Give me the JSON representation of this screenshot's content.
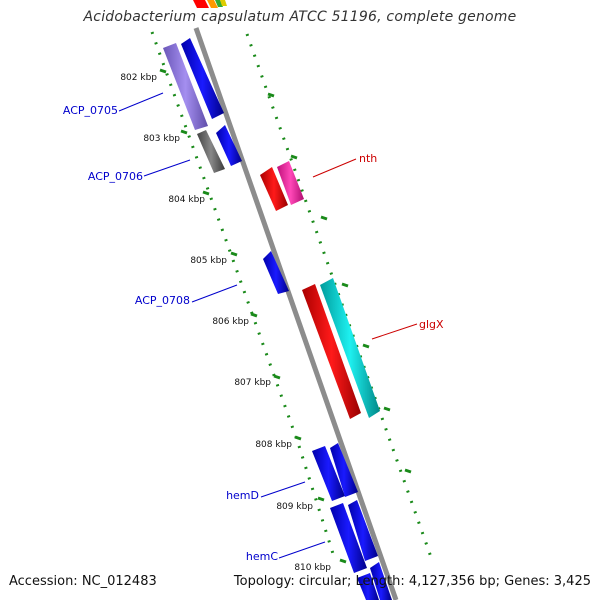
{
  "title": "Acidobacterium capsulatum ATCC 51196, complete genome",
  "accession": "Accession: NC_012483",
  "summary": "Topology: circular; Length: 4,127,356 bp; Genes: 3,425",
  "colors": {
    "backbone": "#8c8c8c",
    "tick": "#1a8a1a",
    "forward_cds": "#0000ee",
    "reverse_cds": "#0000ee",
    "named_blue": "#0000cc",
    "named_red": "#cc0000",
    "red_gene": "#ff0000",
    "magenta_gene": "#ff2aa0",
    "cyan_gene": "#00d0d0",
    "purple_gene": "#7a5fd0",
    "grey_gene": "#666666"
  },
  "kbp_labels": [
    "802 kbp",
    "803 kbp",
    "804 kbp",
    "805 kbp",
    "806 kbp",
    "807 kbp",
    "808 kbp",
    "809 kbp",
    "810 kbp"
  ],
  "gene_labels": [
    {
      "text": "ACP_0705",
      "color": "blue"
    },
    {
      "text": "ACP_0706",
      "color": "blue"
    },
    {
      "text": "ACP_0708",
      "color": "blue"
    },
    {
      "text": "hemD",
      "color": "blue"
    },
    {
      "text": "hemC",
      "color": "blue"
    },
    {
      "text": "nth",
      "color": "red"
    },
    {
      "text": "glgX",
      "color": "red"
    }
  ]
}
